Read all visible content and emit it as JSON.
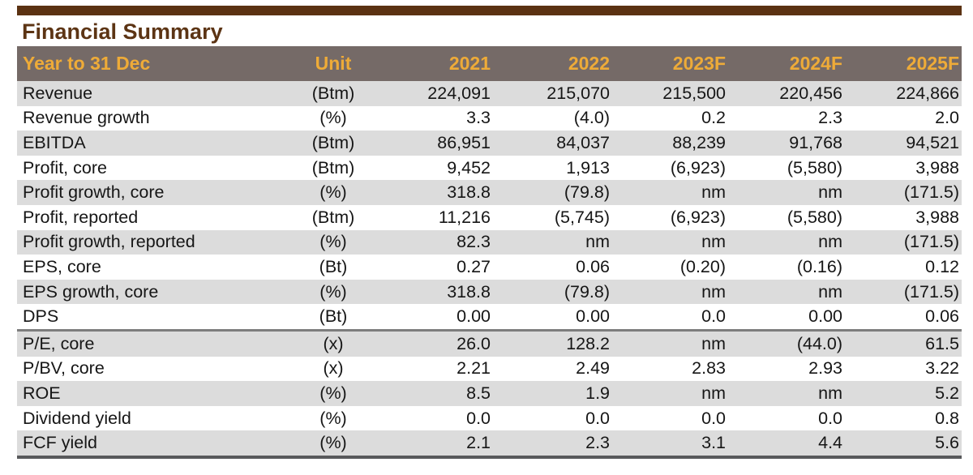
{
  "title": "Financial Summary",
  "colors": {
    "top_bar": "#5b3212",
    "title_text": "#5c3414",
    "header_background": "#756a67",
    "header_text": "#eeab38",
    "alt_row_background": "#dcdcdc",
    "body_text": "#161616",
    "section_divider": "#7d7d7d",
    "bottom_border": "#58595b"
  },
  "table": {
    "columns": [
      "Year to 31 Dec",
      "Unit",
      "2021",
      "2022",
      "2023F",
      "2024F",
      "2025F"
    ],
    "section_break_before_row_index": 10,
    "rows": [
      {
        "label": "Revenue",
        "unit": "(Btm)",
        "values": [
          "224,091",
          "215,070",
          "215,500",
          "220,456",
          "224,866"
        ]
      },
      {
        "label": "Revenue growth",
        "unit": "(%)",
        "values": [
          "3.3",
          "(4.0)",
          "0.2",
          "2.3",
          "2.0"
        ]
      },
      {
        "label": "EBITDA",
        "unit": "(Btm)",
        "values": [
          "86,951",
          "84,037",
          "88,239",
          "91,768",
          "94,521"
        ]
      },
      {
        "label": "Profit, core",
        "unit": "(Btm)",
        "values": [
          "9,452",
          "1,913",
          "(6,923)",
          "(5,580)",
          "3,988"
        ]
      },
      {
        "label": "Profit growth, core",
        "unit": "(%)",
        "values": [
          "318.8",
          "(79.8)",
          "nm",
          "nm",
          "(171.5)"
        ]
      },
      {
        "label": "Profit, reported",
        "unit": "(Btm)",
        "values": [
          "11,216",
          "(5,745)",
          "(6,923)",
          "(5,580)",
          "3,988"
        ]
      },
      {
        "label": "Profit growth, reported",
        "unit": "(%)",
        "values": [
          "82.3",
          "nm",
          "nm",
          "nm",
          "(171.5)"
        ]
      },
      {
        "label": "EPS, core",
        "unit": "(Bt)",
        "values": [
          "0.27",
          "0.06",
          "(0.20)",
          "(0.16)",
          "0.12"
        ]
      },
      {
        "label": "EPS growth, core",
        "unit": "(%)",
        "values": [
          "318.8",
          "(79.8)",
          "nm",
          "nm",
          "(171.5)"
        ]
      },
      {
        "label": "DPS",
        "unit": "(Bt)",
        "values": [
          "0.00",
          "0.00",
          "0.0",
          "0.00",
          "0.06"
        ]
      },
      {
        "label": "P/E, core",
        "unit": "(x)",
        "values": [
          "26.0",
          "128.2",
          "nm",
          "(44.0)",
          "61.5"
        ]
      },
      {
        "label": "P/BV, core",
        "unit": "(x)",
        "values": [
          "2.21",
          "2.49",
          "2.83",
          "2.93",
          "3.22"
        ]
      },
      {
        "label": "ROE",
        "unit": "(%)",
        "values": [
          "8.5",
          "1.9",
          "nm",
          "nm",
          "5.2"
        ]
      },
      {
        "label": "Dividend yield",
        "unit": "(%)",
        "values": [
          "0.0",
          "0.0",
          "0.0",
          "0.0",
          "0.8"
        ]
      },
      {
        "label": "FCF yield",
        "unit": "(%)",
        "values": [
          "2.1",
          "2.3",
          "3.1",
          "4.4",
          "5.6"
        ]
      }
    ]
  }
}
